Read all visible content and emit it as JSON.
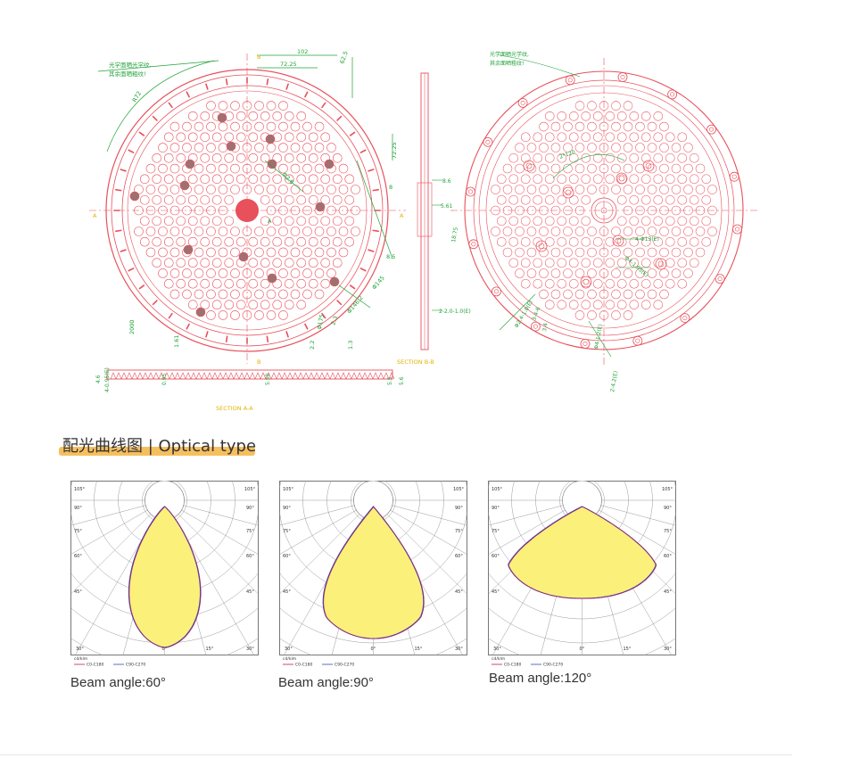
{
  "drawing": {
    "front_view": {
      "note_lines": [
        "光学面晒光学纹,",
        "其余面晒粗纹!"
      ],
      "dims": [
        "102",
        "72.25",
        "62.5",
        "72.25",
        "R72",
        "8",
        "8.5",
        "B-B",
        "A",
        "A",
        "B",
        "B",
        "Φ2.6",
        "Φ145",
        "Φ146.2",
        "2.2",
        "2.3",
        "1.3",
        "Φ175",
        "0.6",
        "4-4",
        "R.73",
        "2000",
        "1.61"
      ]
    },
    "side_view": {
      "dims": [
        "8.6",
        "5.61",
        "2-2.0-1.0(E)"
      ],
      "label": "SECTION  B-B"
    },
    "bottom_view": {
      "dims": [
        "4.6",
        "4-0.95(E)",
        "0.95",
        "5.58",
        "5.5",
        "5.6"
      ],
      "label": "SECTION  A-A"
    },
    "back_view": {
      "note_lines": [
        "光学面晒光学纹,",
        "其余面晒粗纹!"
      ],
      "dims": [
        "2*120",
        "4-Φ13(E)",
        "Φ4-1.05(E)",
        "Φ1.0",
        "Φ2.4-1.0(E)",
        "3-4-6",
        "3.4",
        "Φ4-1.2(E)",
        "2-4.2(E)",
        "Φ4-0.2-1.0(E)",
        "18.75"
      ]
    }
  },
  "section": {
    "title": "配光曲线图 | Optical type",
    "highlight_color": "#f5b84c"
  },
  "polar_common": {
    "corner_labels": [
      "105°",
      "105°"
    ],
    "row_labels": [
      "90°",
      "75°",
      "60°",
      "45°"
    ],
    "bottom_labels": [
      "30°",
      "0°",
      "15°",
      "30°"
    ],
    "unit": "cd/klm",
    "legend": [
      "C0-C180",
      "C90-C270"
    ],
    "legend_colors": [
      "#c2185b",
      "#3949ab"
    ],
    "fill_color": "#fbf07a"
  },
  "charts": [
    {
      "caption": "Beam angle:60°",
      "beam_angle": 60
    },
    {
      "caption": "Beam angle:90°",
      "beam_angle": 90
    },
    {
      "caption": "Beam angle:120°",
      "beam_angle": 120
    }
  ],
  "colors": {
    "drawing_red": "#e8505b",
    "dim_green": "#22a33a",
    "label_yellow": "#e0b400"
  }
}
